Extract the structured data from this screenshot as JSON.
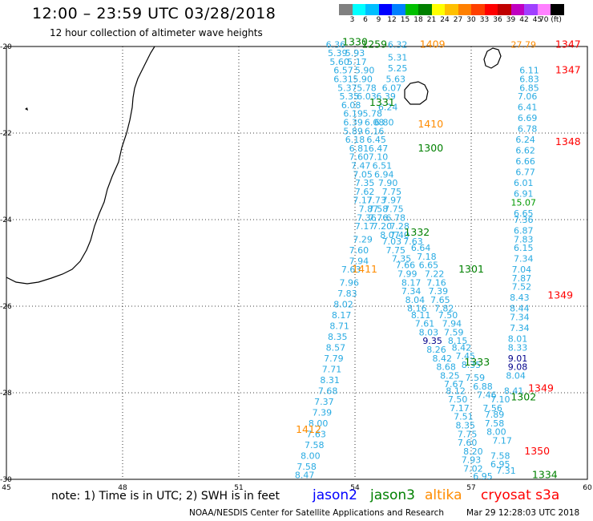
{
  "title": "12:00 – 23:59 UTC 03/28/2018",
  "subtitle": "12 hour collection of altimeter wave heights",
  "scale": {
    "colors": [
      "#808080",
      "#00ffff",
      "#00bfff",
      "#0000ff",
      "#0080ff",
      "#00c000",
      "#008000",
      "#ffff00",
      "#ffc000",
      "#ff8000",
      "#ff4000",
      "#ff0000",
      "#c00000",
      "#c000c0",
      "#a040ff",
      "#ff80ff",
      "#000000"
    ],
    "labels": [
      "3",
      "6",
      "9",
      "12",
      "15",
      "18",
      "21",
      "24",
      "27",
      "30",
      "33",
      "36",
      "39",
      "42",
      "45",
      "70 (ft)"
    ]
  },
  "axes": {
    "lon_labels": [
      "45",
      "48",
      "51",
      "54",
      "57",
      "60"
    ],
    "lat_labels": [
      "-20",
      "-22",
      "-24",
      "-26",
      "-28",
      "-30"
    ]
  },
  "colors": {
    "jason2": "#0000ff",
    "jason3": "#008000",
    "altika": "#ff8c00",
    "cryosat": "#ff0000",
    "swh": "#29abe2",
    "swh_dark": "#00008b",
    "swh_green": "#009900"
  },
  "pass_times": [
    {
      "t": "1330",
      "sat": "jason3",
      "lon": 54.0,
      "lat": -19.9
    },
    {
      "t": "1259",
      "sat": "jason3",
      "lon": 54.5,
      "lat": -19.95
    },
    {
      "t": "1409",
      "sat": "altika",
      "lon": 56.0,
      "lat": -19.95
    },
    {
      "t": "1347",
      "sat": "cryosat",
      "lon": 59.5,
      "lat": -19.95
    },
    {
      "t": "1347",
      "sat": "cryosat",
      "lon": 59.5,
      "lat": -20.55
    },
    {
      "t": "1331",
      "sat": "jason3",
      "lon": 54.7,
      "lat": -21.3
    },
    {
      "t": "1410",
      "sat": "altika",
      "lon": 55.95,
      "lat": -21.8
    },
    {
      "t": "1348",
      "sat": "cryosat",
      "lon": 59.5,
      "lat": -22.2
    },
    {
      "t": "1300",
      "sat": "jason3",
      "lon": 55.95,
      "lat": -22.35
    },
    {
      "t": "1332",
      "sat": "jason3",
      "lon": 55.6,
      "lat": -24.3
    },
    {
      "t": "1411",
      "sat": "altika",
      "lon": 54.25,
      "lat": -25.15
    },
    {
      "t": "1301",
      "sat": "jason3",
      "lon": 57.0,
      "lat": -25.15
    },
    {
      "t": "1349",
      "sat": "cryosat",
      "lon": 59.3,
      "lat": -25.75
    },
    {
      "t": "1333",
      "sat": "jason3",
      "lon": 57.15,
      "lat": -27.3
    },
    {
      "t": "1349",
      "sat": "cryosat",
      "lon": 58.8,
      "lat": -27.9
    },
    {
      "t": "1302",
      "sat": "jason3",
      "lon": 58.35,
      "lat": -28.1
    },
    {
      "t": "1412",
      "sat": "altika",
      "lon": 52.8,
      "lat": -28.85
    },
    {
      "t": "1350",
      "sat": "cryosat",
      "lon": 58.7,
      "lat": -29.35
    },
    {
      "t": "1334",
      "sat": "jason3",
      "lon": 58.9,
      "lat": -29.9
    }
  ],
  "swh_labels": [
    {
      "v": "27.79",
      "lon": 58.35,
      "lat": -19.95,
      "c": "altika"
    },
    {
      "v": "6.36",
      "lon": 53.5,
      "lat": -19.95
    },
    {
      "v": "6.32",
      "lon": 55.1,
      "lat": -19.95
    },
    {
      "v": "5.39",
      "lon": 53.55,
      "lat": -20.15
    },
    {
      "v": "5.93",
      "lon": 54.0,
      "lat": -20.15
    },
    {
      "v": "5.31",
      "lon": 55.1,
      "lat": -20.25
    },
    {
      "v": "5.60",
      "lon": 53.6,
      "lat": -20.35
    },
    {
      "v": "5.17",
      "lon": 54.05,
      "lat": -20.35
    },
    {
      "v": "5.25",
      "lon": 55.1,
      "lat": -20.5
    },
    {
      "v": "6.57",
      "lon": 53.7,
      "lat": -20.55
    },
    {
      "v": "5.90",
      "lon": 54.25,
      "lat": -20.55
    },
    {
      "v": "6.11",
      "lon": 58.5,
      "lat": -20.55
    },
    {
      "v": "6.31",
      "lon": 53.7,
      "lat": -20.75
    },
    {
      "v": "5.90",
      "lon": 54.2,
      "lat": -20.75
    },
    {
      "v": "5.63",
      "lon": 55.05,
      "lat": -20.75
    },
    {
      "v": "6.83",
      "lon": 58.5,
      "lat": -20.75
    },
    {
      "v": "5.37",
      "lon": 53.8,
      "lat": -20.95
    },
    {
      "v": "5.78",
      "lon": 54.3,
      "lat": -20.95
    },
    {
      "v": "6.07",
      "lon": 54.95,
      "lat": -20.95
    },
    {
      "v": "6.85",
      "lon": 58.5,
      "lat": -20.95
    },
    {
      "v": "5.35",
      "lon": 53.85,
      "lat": -21.15
    },
    {
      "v": "6.03",
      "lon": 54.3,
      "lat": -21.15
    },
    {
      "v": "6.39",
      "lon": 54.8,
      "lat": -21.15
    },
    {
      "v": "7.06",
      "lon": 58.45,
      "lat": -21.15
    },
    {
      "v": "6.08",
      "lon": 53.9,
      "lat": -21.35
    },
    {
      "v": "6.24",
      "lon": 54.85,
      "lat": -21.4
    },
    {
      "v": "6.41",
      "lon": 58.45,
      "lat": -21.4
    },
    {
      "v": "6.19",
      "lon": 53.95,
      "lat": -21.55
    },
    {
      "v": "5.78",
      "lon": 54.45,
      "lat": -21.55
    },
    {
      "v": "6.69",
      "lon": 58.45,
      "lat": -21.65
    },
    {
      "v": "6.39",
      "lon": 53.95,
      "lat": -21.75
    },
    {
      "v": "6.08",
      "lon": 54.5,
      "lat": -21.75
    },
    {
      "v": "6.80",
      "lon": 54.75,
      "lat": -21.75
    },
    {
      "v": "5.89",
      "lon": 53.95,
      "lat": -21.95
    },
    {
      "v": "6.16",
      "lon": 54.5,
      "lat": -21.95
    },
    {
      "v": "6.78",
      "lon": 58.45,
      "lat": -21.9
    },
    {
      "v": "6.18",
      "lon": 54.0,
      "lat": -22.15
    },
    {
      "v": "6.45",
      "lon": 54.55,
      "lat": -22.15
    },
    {
      "v": "6.24",
      "lon": 58.4,
      "lat": -22.15
    },
    {
      "v": "6.81",
      "lon": 54.1,
      "lat": -22.35
    },
    {
      "v": "6.47",
      "lon": 54.6,
      "lat": -22.35
    },
    {
      "v": "6.62",
      "lon": 58.4,
      "lat": -22.4
    },
    {
      "v": "7.60",
      "lon": 54.1,
      "lat": -22.55
    },
    {
      "v": "7.10",
      "lon": 54.6,
      "lat": -22.55
    },
    {
      "v": "6.66",
      "lon": 58.4,
      "lat": -22.65
    },
    {
      "v": "7.47",
      "lon": 54.15,
      "lat": -22.75
    },
    {
      "v": "6.51",
      "lon": 54.7,
      "lat": -22.75
    },
    {
      "v": "6.77",
      "lon": 58.4,
      "lat": -22.9
    },
    {
      "v": "7.05",
      "lon": 54.2,
      "lat": -22.95
    },
    {
      "v": "6.94",
      "lon": 54.75,
      "lat": -22.95
    },
    {
      "v": "6.01",
      "lon": 58.35,
      "lat": -23.15
    },
    {
      "v": "7.35",
      "lon": 54.25,
      "lat": -23.15
    },
    {
      "v": "7.90",
      "lon": 54.85,
      "lat": -23.15
    },
    {
      "v": "6.91",
      "lon": 58.35,
      "lat": -23.4
    },
    {
      "v": "7.62",
      "lon": 54.25,
      "lat": -23.35
    },
    {
      "v": "7.75",
      "lon": 54.95,
      "lat": -23.35
    },
    {
      "v": "7.17",
      "lon": 54.2,
      "lat": -23.55
    },
    {
      "v": "7.73",
      "lon": 54.55,
      "lat": -23.55
    },
    {
      "v": "7.97",
      "lon": 54.95,
      "lat": -23.55
    },
    {
      "v": "15.07",
      "lon": 58.35,
      "lat": -23.6,
      "c": "jason3"
    },
    {
      "v": "7.87",
      "lon": 54.35,
      "lat": -23.75
    },
    {
      "v": "7.58",
      "lon": 54.6,
      "lat": -23.75
    },
    {
      "v": "7.75",
      "lon": 55.0,
      "lat": -23.75
    },
    {
      "v": "6.65",
      "lon": 58.35,
      "lat": -23.85
    },
    {
      "v": "7.36",
      "lon": 54.3,
      "lat": -23.95
    },
    {
      "v": "7.76",
      "lon": 54.6,
      "lat": -23.95
    },
    {
      "v": "6.78",
      "lon": 55.05,
      "lat": -23.95
    },
    {
      "v": "7.36",
      "lon": 58.35,
      "lat": -24.0
    },
    {
      "v": "7.17",
      "lon": 54.25,
      "lat": -24.15
    },
    {
      "v": "7.20",
      "lon": 54.7,
      "lat": -24.15
    },
    {
      "v": "7.28",
      "lon": 55.15,
      "lat": -24.15
    },
    {
      "v": "6.87",
      "lon": 58.35,
      "lat": -24.25
    },
    {
      "v": "8.07",
      "lon": 54.9,
      "lat": -24.35
    },
    {
      "v": "7.40",
      "lon": 55.15,
      "lat": -24.35
    },
    {
      "v": "7.83",
      "lon": 58.35,
      "lat": -24.45
    },
    {
      "v": "7.29",
      "lon": 54.2,
      "lat": -24.45
    },
    {
      "v": "7.03",
      "lon": 54.95,
      "lat": -24.5
    },
    {
      "v": "7.63",
      "lon": 55.5,
      "lat": -24.5
    },
    {
      "v": "7.60",
      "lon": 54.1,
      "lat": -24.7
    },
    {
      "v": "7.75",
      "lon": 55.05,
      "lat": -24.7
    },
    {
      "v": "6.64",
      "lon": 55.7,
      "lat": -24.65
    },
    {
      "v": "6.15",
      "lon": 58.35,
      "lat": -24.65
    },
    {
      "v": "7.94",
      "lon": 54.1,
      "lat": -24.95
    },
    {
      "v": "7.35",
      "lon": 55.2,
      "lat": -24.9
    },
    {
      "v": "7.18",
      "lon": 55.85,
      "lat": -24.85
    },
    {
      "v": "7.34",
      "lon": 58.35,
      "lat": -24.9
    },
    {
      "v": "7.66",
      "lon": 55.3,
      "lat": -25.05
    },
    {
      "v": "6.65",
      "lon": 55.9,
      "lat": -25.05
    },
    {
      "v": "7.63",
      "lon": 53.9,
      "lat": -25.15
    },
    {
      "v": "7.99",
      "lon": 55.35,
      "lat": -25.25
    },
    {
      "v": "7.22",
      "lon": 56.05,
      "lat": -25.25
    },
    {
      "v": "7.04",
      "lon": 58.3,
      "lat": -25.15
    },
    {
      "v": "7.96",
      "lon": 53.85,
      "lat": -25.45
    },
    {
      "v": "8.17",
      "lon": 55.45,
      "lat": -25.45
    },
    {
      "v": "7.16",
      "lon": 56.1,
      "lat": -25.45
    },
    {
      "v": "7.87",
      "lon": 58.3,
      "lat": -25.35
    },
    {
      "v": "7.83",
      "lon": 53.8,
      "lat": -25.7
    },
    {
      "v": "7.34",
      "lon": 55.45,
      "lat": -25.65
    },
    {
      "v": "7.39",
      "lon": 56.15,
      "lat": -25.65
    },
    {
      "v": "7.52",
      "lon": 58.3,
      "lat": -25.55
    },
    {
      "v": "8.02",
      "lon": 53.7,
      "lat": -25.95
    },
    {
      "v": "8.04",
      "lon": 55.55,
      "lat": -25.85
    },
    {
      "v": "7.65",
      "lon": 56.2,
      "lat": -25.85
    },
    {
      "v": "8.43",
      "lon": 58.25,
      "lat": -25.8
    },
    {
      "v": "8.16",
      "lon": 55.6,
      "lat": -26.05
    },
    {
      "v": "7.82",
      "lon": 56.3,
      "lat": -26.05
    },
    {
      "v": "8.44",
      "lon": 58.25,
      "lat": -26.05
    },
    {
      "v": "8.17",
      "lon": 53.65,
      "lat": -26.2
    },
    {
      "v": "8.11",
      "lon": 55.7,
      "lat": -26.2
    },
    {
      "v": "7.50",
      "lon": 56.4,
      "lat": -26.2
    },
    {
      "v": "7.34",
      "lon": 58.25,
      "lat": -26.25
    },
    {
      "v": "8.71",
      "lon": 53.6,
      "lat": -26.45
    },
    {
      "v": "7.61",
      "lon": 55.8,
      "lat": -26.4
    },
    {
      "v": "7.94",
      "lon": 56.5,
      "lat": -26.4
    },
    {
      "v": "7.34",
      "lon": 58.25,
      "lat": -26.5
    },
    {
      "v": "8.35",
      "lon": 53.55,
      "lat": -26.7
    },
    {
      "v": "8.03",
      "lon": 55.9,
      "lat": -26.6
    },
    {
      "v": "7.59",
      "lon": 56.55,
      "lat": -26.6
    },
    {
      "v": "8.01",
      "lon": 58.2,
      "lat": -26.75
    },
    {
      "v": "9.35",
      "lon": 56.0,
      "lat": -26.8,
      "c": "jason2"
    },
    {
      "v": "8.15",
      "lon": 56.65,
      "lat": -26.8
    },
    {
      "v": "8.57",
      "lon": 53.5,
      "lat": -26.95
    },
    {
      "v": "8.26",
      "lon": 56.1,
      "lat": -27.0
    },
    {
      "v": "8.42",
      "lon": 56.75,
      "lat": -26.95
    },
    {
      "v": "8.33",
      "lon": 58.2,
      "lat": -26.95
    },
    {
      "v": "7.79",
      "lon": 53.45,
      "lat": -27.2
    },
    {
      "v": "8.42",
      "lon": 56.25,
      "lat": -27.2
    },
    {
      "v": "7.45",
      "lon": 56.85,
      "lat": -27.15
    },
    {
      "v": "9.01",
      "lon": 58.2,
      "lat": -27.2,
      "c": "jason2"
    },
    {
      "v": "7.71",
      "lon": 53.4,
      "lat": -27.45
    },
    {
      "v": "8.68",
      "lon": 56.35,
      "lat": -27.4
    },
    {
      "v": "8.35",
      "lon": 57.0,
      "lat": -27.35
    },
    {
      "v": "9.08",
      "lon": 58.2,
      "lat": -27.4,
      "c": "jason2"
    },
    {
      "v": "8.25",
      "lon": 56.45,
      "lat": -27.6
    },
    {
      "v": "8.04",
      "lon": 58.15,
      "lat": -27.6
    },
    {
      "v": "8.31",
      "lon": 53.35,
      "lat": -27.7
    },
    {
      "v": "7.67",
      "lon": 56.55,
      "lat": -27.8
    },
    {
      "v": "7.59",
      "lon": 57.1,
      "lat": -27.65
    },
    {
      "v": "7.68",
      "lon": 53.3,
      "lat": -27.95
    },
    {
      "v": "8.12",
      "lon": 56.6,
      "lat": -27.95
    },
    {
      "v": "6.88",
      "lon": 57.3,
      "lat": -27.85
    },
    {
      "v": "8.41",
      "lon": 58.1,
      "lat": -27.95
    },
    {
      "v": "7.37",
      "lon": 53.2,
      "lat": -28.2
    },
    {
      "v": "7.50",
      "lon": 56.65,
      "lat": -28.15
    },
    {
      "v": "7.46",
      "lon": 57.4,
      "lat": -28.05
    },
    {
      "v": "7.10",
      "lon": 57.75,
      "lat": -28.15
    },
    {
      "v": "7.39",
      "lon": 53.15,
      "lat": -28.45
    },
    {
      "v": "7.17",
      "lon": 56.7,
      "lat": -28.35
    },
    {
      "v": "7.56",
      "lon": 57.55,
      "lat": -28.35
    },
    {
      "v": "8.00",
      "lon": 53.05,
      "lat": -28.7
    },
    {
      "v": "7.51",
      "lon": 56.8,
      "lat": -28.55
    },
    {
      "v": "7.89",
      "lon": 57.6,
      "lat": -28.5
    },
    {
      "v": "7.63",
      "lon": 53.0,
      "lat": -28.95
    },
    {
      "v": "8.35",
      "lon": 56.85,
      "lat": -28.75
    },
    {
      "v": "7.58",
      "lon": 57.6,
      "lat": -28.7
    },
    {
      "v": "7.58",
      "lon": 52.95,
      "lat": -29.2
    },
    {
      "v": "7.75",
      "lon": 56.9,
      "lat": -28.95
    },
    {
      "v": "8.00",
      "lon": 57.65,
      "lat": -28.9
    },
    {
      "v": "7.60",
      "lon": 56.9,
      "lat": -29.15
    },
    {
      "v": "7.17",
      "lon": 57.8,
      "lat": -29.1
    },
    {
      "v": "8.00",
      "lon": 52.85,
      "lat": -29.45
    },
    {
      "v": "8.20",
      "lon": 57.05,
      "lat": -29.35
    },
    {
      "v": "7.58",
      "lon": 57.75,
      "lat": -29.45
    },
    {
      "v": "7.58",
      "lon": 52.75,
      "lat": -29.7
    },
    {
      "v": "7.93",
      "lon": 57.0,
      "lat": -29.55
    },
    {
      "v": "6.95",
      "lon": 57.75,
      "lat": -29.65
    },
    {
      "v": "8.47",
      "lon": 52.7,
      "lat": -29.9
    },
    {
      "v": "7.02",
      "lon": 57.05,
      "lat": -29.75
    },
    {
      "v": "7.31",
      "lon": 57.9,
      "lat": -29.8
    },
    {
      "v": "6.95",
      "lon": 57.3,
      "lat": -29.93
    }
  ],
  "note": "note:  1) Time is in UTC;  2) SWH is in feet",
  "satellites": [
    {
      "name": "jason2",
      "key": "jason2"
    },
    {
      "name": "jason3",
      "key": "jason3"
    },
    {
      "name": "altika",
      "key": "altika"
    },
    {
      "name": "cryosat s3a",
      "key": "cryosat"
    }
  ],
  "credit": "NOAA/NESDIS Center for Satellite Applications and Research",
  "timestamp": "Mar 29 12:28:03 UTC 2018"
}
